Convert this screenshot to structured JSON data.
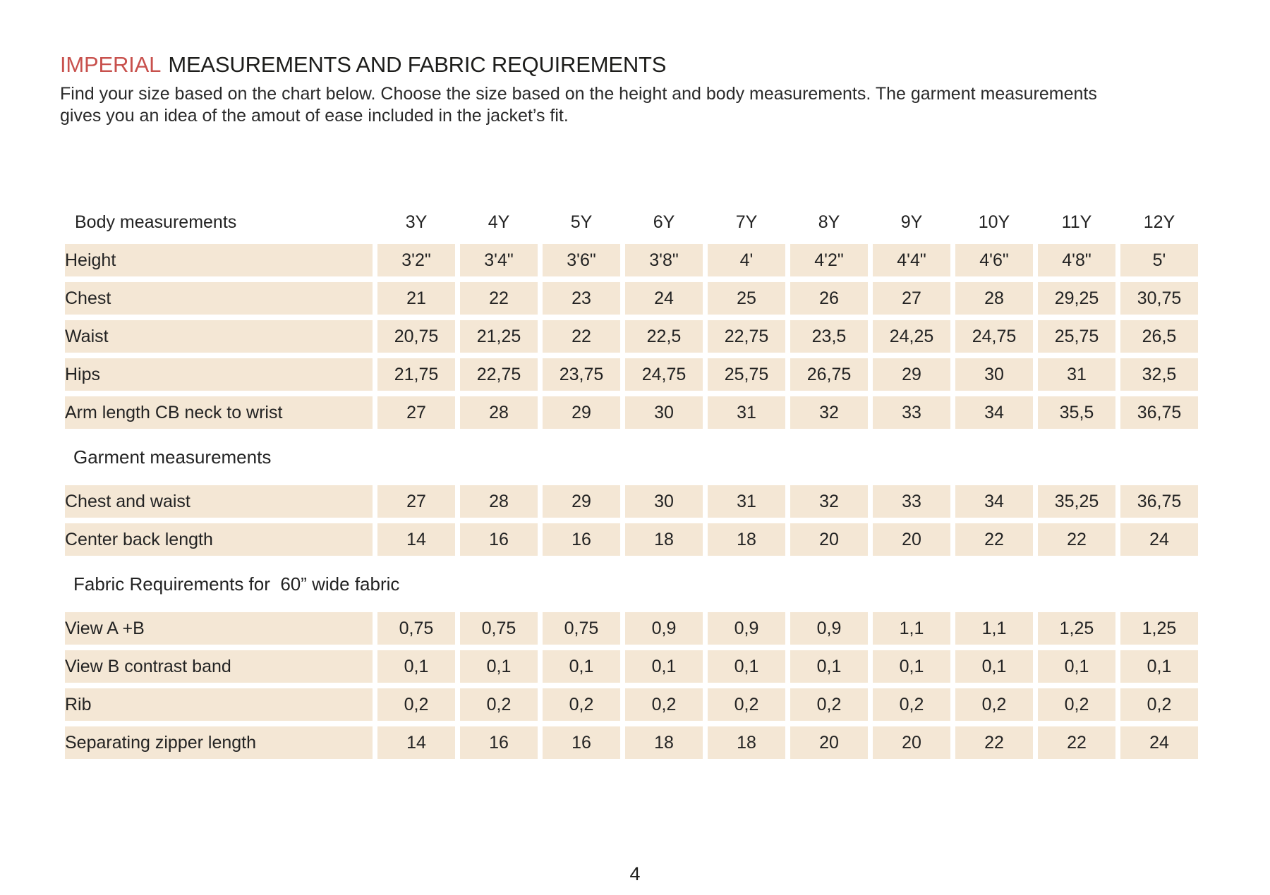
{
  "colors": {
    "accent_red": "#c8514d",
    "cell_fill": "#f4e7d5",
    "text": "#232323"
  },
  "title": {
    "accent": "IMPERIAL",
    "rest": "MEASUREMENTS AND FABRIC REQUIREMENTS"
  },
  "intro": {
    "line1": "Find your size based on the chart below. Choose the size based on the height and body measurements. The garment measurements",
    "line2": "gives you an idea of the amout of ease included in the jacket’s fit."
  },
  "table": {
    "header_label": "Body measurements",
    "columns": [
      "3Y",
      "4Y",
      "5Y",
      "6Y",
      "7Y",
      "8Y",
      "9Y",
      "10Y",
      "11Y",
      "12Y"
    ],
    "sections": [
      {
        "header": null,
        "rows": [
          {
            "label": "Height",
            "values": [
              "3'2\"",
              "3'4\"",
              "3'6\"",
              "3'8\"",
              "4'",
              "4'2\"",
              "4'4\"",
              "4'6\"",
              "4'8\"",
              "5'"
            ]
          },
          {
            "label": "Chest",
            "values": [
              "21",
              "22",
              "23",
              "24",
              "25",
              "26",
              "27",
              "28",
              "29,25",
              "30,75"
            ]
          },
          {
            "label": "Waist",
            "values": [
              "20,75",
              "21,25",
              "22",
              "22,5",
              "22,75",
              "23,5",
              "24,25",
              "24,75",
              "25,75",
              "26,5"
            ]
          },
          {
            "label": "Hips",
            "values": [
              "21,75",
              "22,75",
              "23,75",
              "24,75",
              "25,75",
              "26,75",
              "29",
              "30",
              "31",
              "32,5"
            ]
          },
          {
            "label": "Arm length CB neck to wrist",
            "values": [
              "27",
              "28",
              "29",
              "30",
              "31",
              "32",
              "33",
              "34",
              "35,5",
              "36,75"
            ]
          }
        ]
      },
      {
        "header": "Garment measurements",
        "rows": [
          {
            "label": "Chest and waist",
            "values": [
              "27",
              "28",
              "29",
              "30",
              "31",
              "32",
              "33",
              "34",
              "35,25",
              "36,75"
            ]
          },
          {
            "label": "Center back length",
            "values": [
              "14",
              "16",
              "16",
              "18",
              "18",
              "20",
              "20",
              "22",
              "22",
              "24"
            ]
          }
        ]
      },
      {
        "header": "Fabric Requirements for  60” wide fabric",
        "rows": [
          {
            "label": "View A +B",
            "values": [
              "0,75",
              "0,75",
              "0,75",
              "0,9",
              "0,9",
              "0,9",
              "1,1",
              "1,1",
              "1,25",
              "1,25"
            ]
          },
          {
            "label": "View B contrast band",
            "values": [
              "0,1",
              "0,1",
              "0,1",
              "0,1",
              "0,1",
              "0,1",
              "0,1",
              "0,1",
              "0,1",
              "0,1"
            ]
          },
          {
            "label": "Rib",
            "values": [
              "0,2",
              "0,2",
              "0,2",
              "0,2",
              "0,2",
              "0,2",
              "0,2",
              "0,2",
              "0,2",
              "0,2"
            ]
          },
          {
            "label": "Separating zipper length",
            "values": [
              "14",
              "16",
              "16",
              "18",
              "18",
              "20",
              "20",
              "22",
              "22",
              "24"
            ]
          }
        ]
      }
    ]
  },
  "footer": {
    "page_number": "4"
  }
}
